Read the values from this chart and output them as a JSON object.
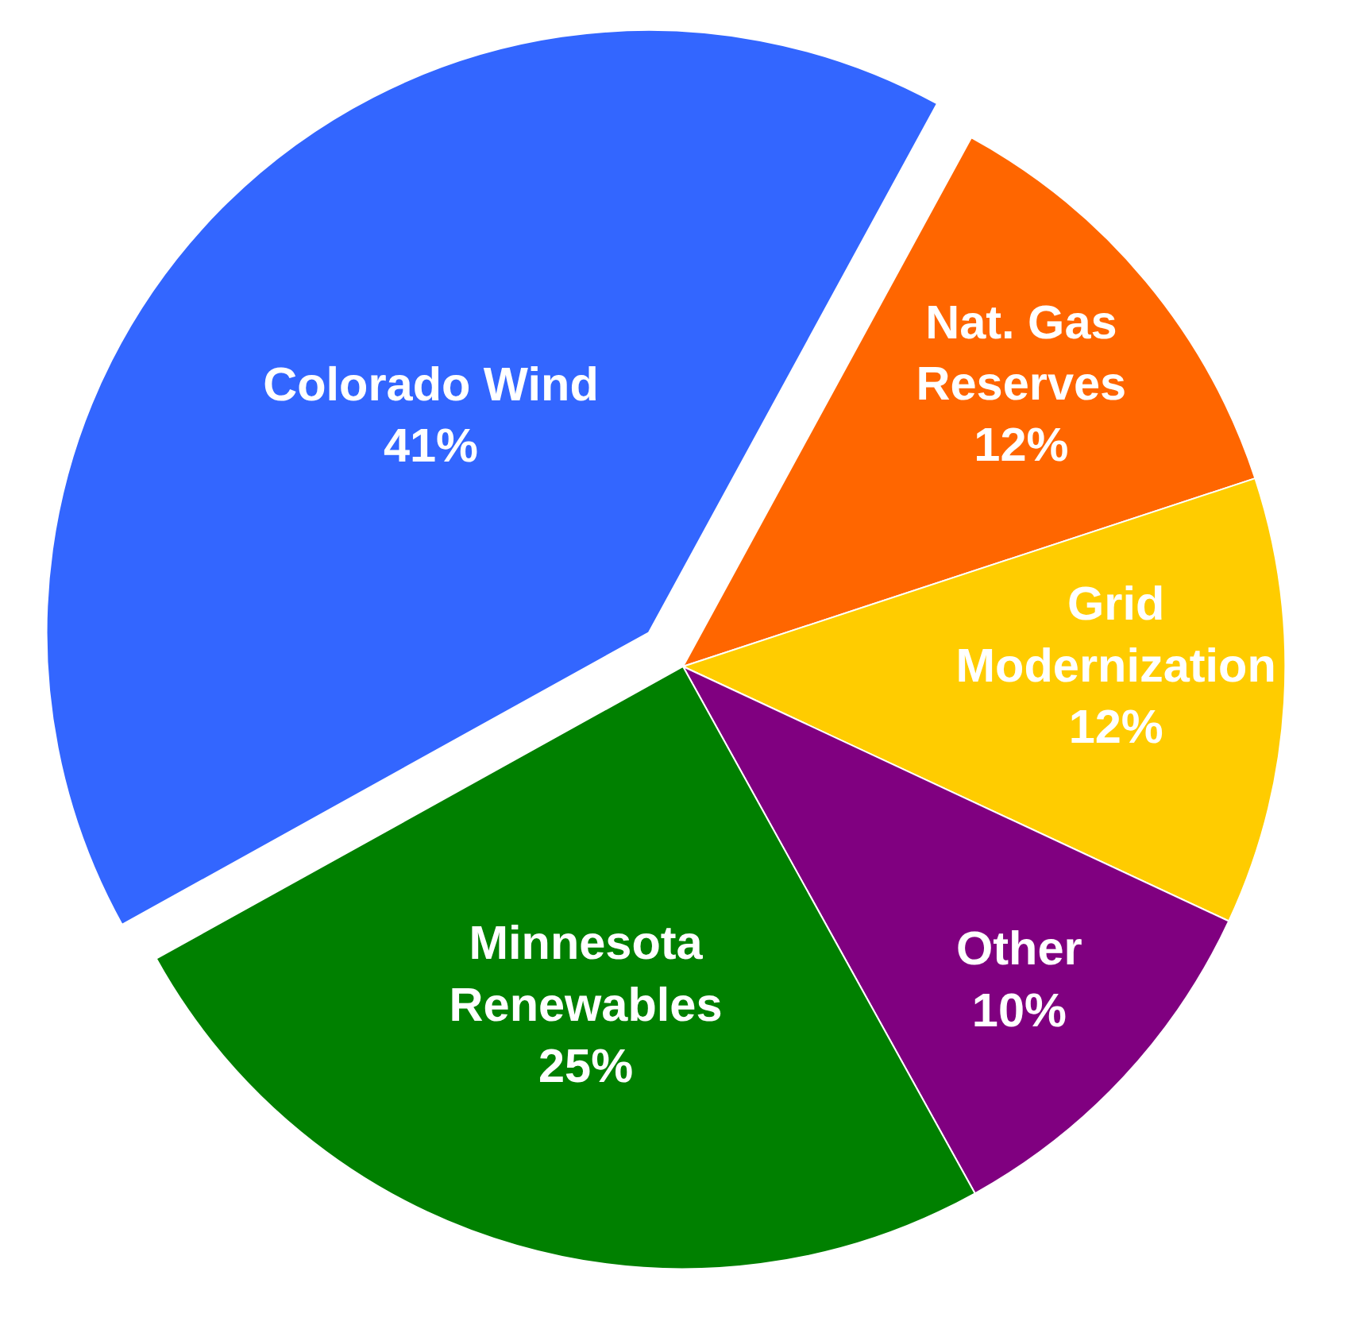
{
  "chart_data": {
    "type": "pie",
    "categories": [
      "Colorado Wind",
      "Nat. Gas Reserves",
      "Grid Modernization",
      "Other",
      "Minnesota Renewables"
    ],
    "values": [
      41,
      12,
      12,
      10,
      25
    ],
    "value_labels": [
      "41%",
      "12%",
      "12%",
      "10%",
      "25%"
    ],
    "colors": [
      "#3366ff",
      "#ff6600",
      "#ffcc00",
      "#800080",
      "#008000"
    ],
    "legend": false
  }
}
